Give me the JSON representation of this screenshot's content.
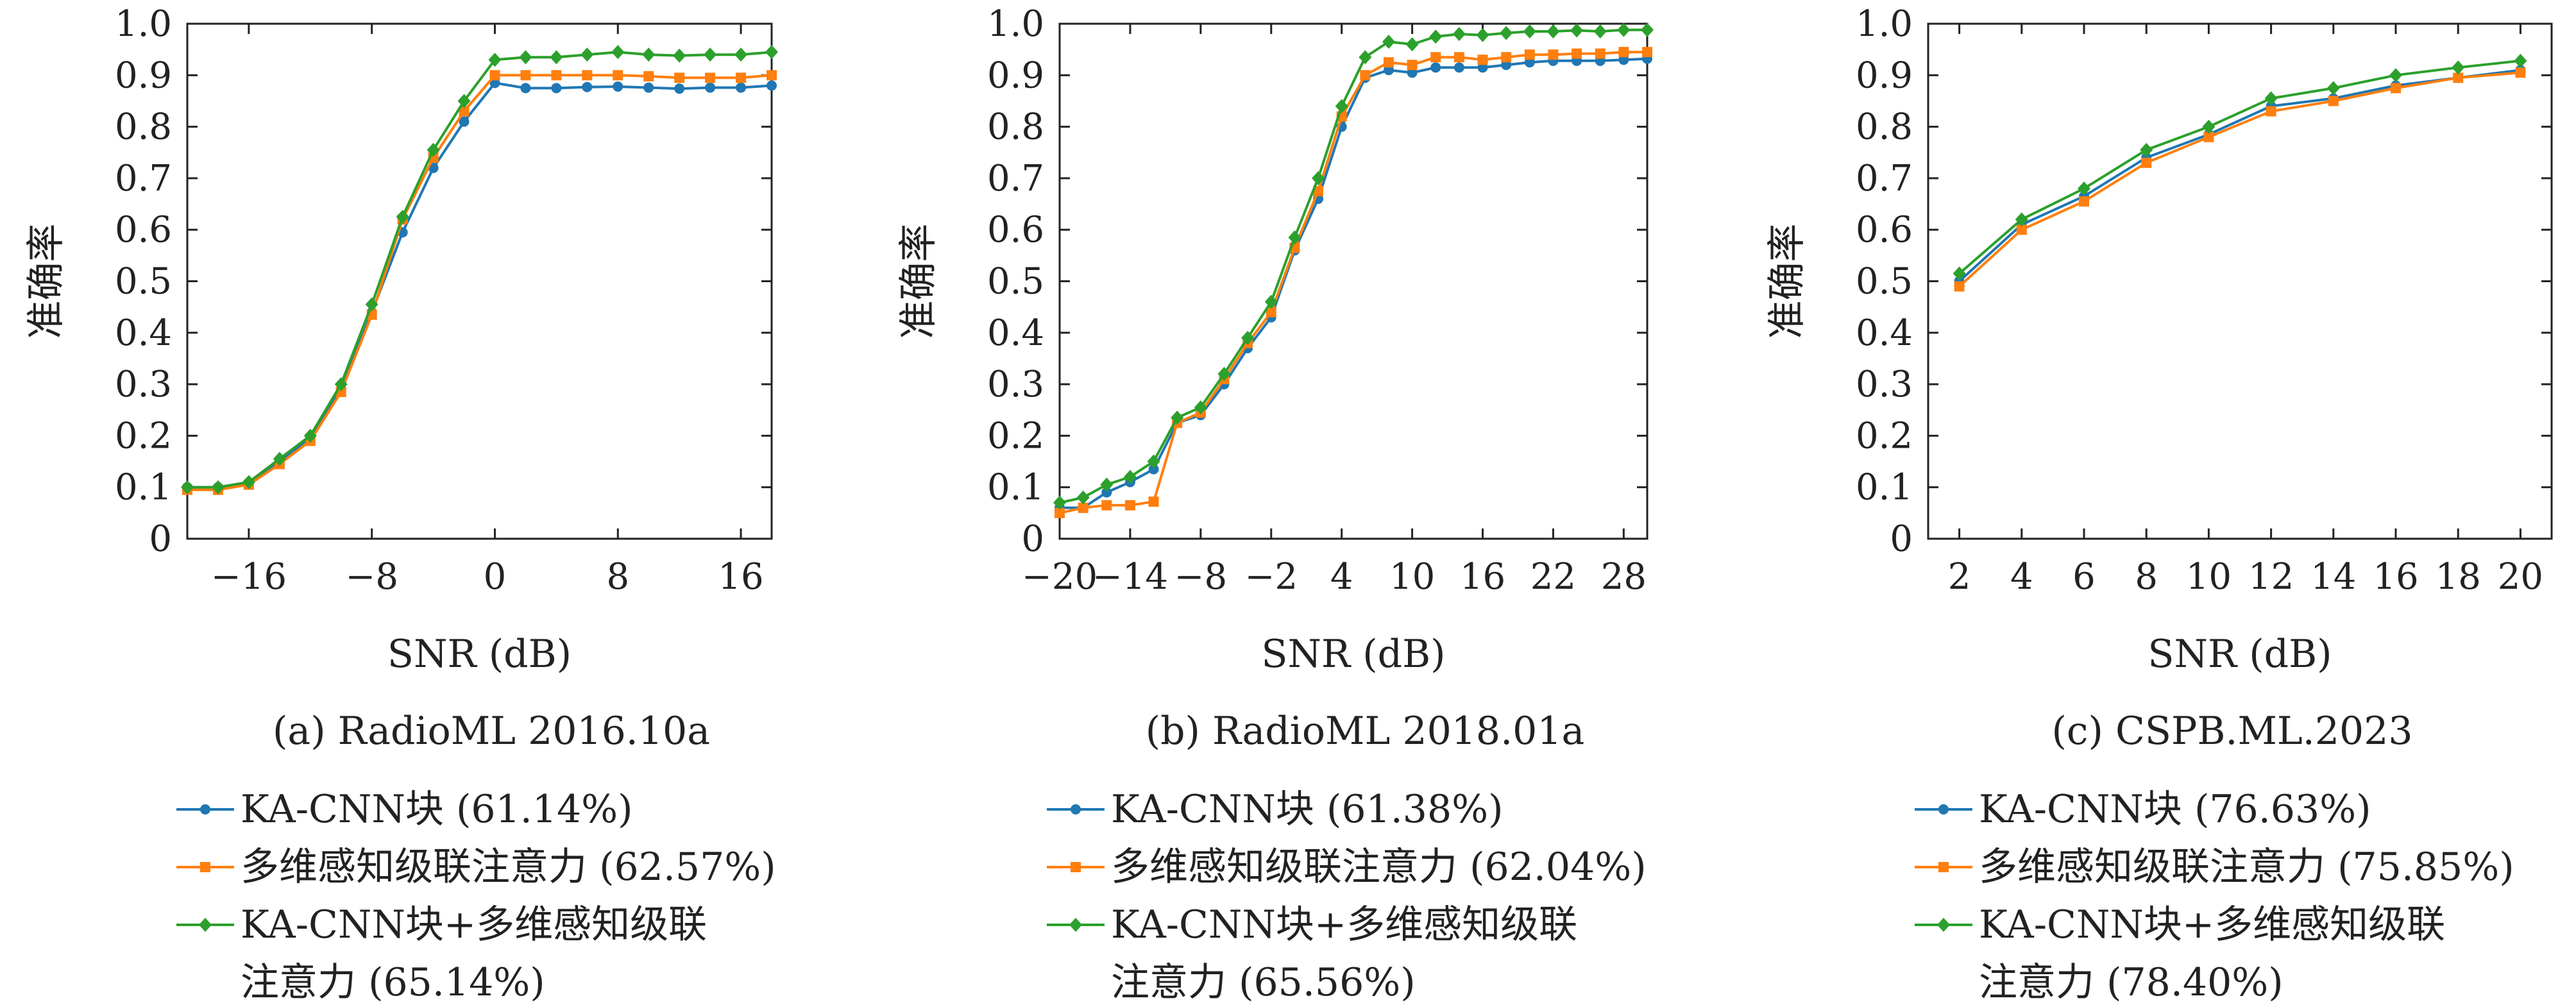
{
  "colors": {
    "blue": "#1f77b4",
    "orange": "#ff7f0e",
    "green": "#2ca02c",
    "axis": "#222222"
  },
  "chart_data": [
    {
      "type": "line",
      "caption": "(a) RadioML 2016.10a",
      "xlabel": "SNR (dB)",
      "ylabel": "准确率",
      "xlim": [
        -20,
        18
      ],
      "ylim": [
        0,
        1.0
      ],
      "xticks": [
        -16,
        -8,
        0,
        8,
        16
      ],
      "xtick_labels": [
        "−16",
        "−8",
        "0",
        "8",
        "16"
      ],
      "yticks": [
        0,
        0.1,
        0.2,
        0.3,
        0.4,
        0.5,
        0.6,
        0.7,
        0.8,
        0.9,
        1.0
      ],
      "ytick_labels": [
        "0",
        "0.1",
        "0.2",
        "0.3",
        "0.4",
        "0.5",
        "0.6",
        "0.7",
        "0.8",
        "0.9",
        "1.0"
      ],
      "grid": false,
      "legend_position": "below",
      "x": [
        -20,
        -18,
        -16,
        -14,
        -12,
        -10,
        -8,
        -6,
        -4,
        -2,
        0,
        2,
        4,
        6,
        8,
        10,
        12,
        14,
        16,
        18
      ],
      "series": [
        {
          "name": "KA-CNN块 (61.14%)",
          "legend_lines": [
            "KA-CNN块 (61.14%)"
          ],
          "color": "#1f77b4",
          "marker": "circle",
          "values": [
            0.1,
            0.1,
            0.105,
            0.15,
            0.195,
            0.29,
            0.44,
            0.595,
            0.72,
            0.81,
            0.885,
            0.875,
            0.875,
            0.877,
            0.878,
            0.876,
            0.874,
            0.876,
            0.876,
            0.88
          ]
        },
        {
          "name": "多维感知级联注意力 (62.57%)",
          "legend_lines": [
            "多维感知级联注意力 (62.57%)"
          ],
          "color": "#ff7f0e",
          "marker": "square",
          "values": [
            0.095,
            0.095,
            0.105,
            0.145,
            0.19,
            0.285,
            0.435,
            0.62,
            0.74,
            0.83,
            0.9,
            0.9,
            0.9,
            0.9,
            0.9,
            0.898,
            0.895,
            0.895,
            0.895,
            0.9
          ]
        },
        {
          "name": "KA-CNN块+多维感知级联注意力 (65.14%)",
          "legend_lines": [
            "KA-CNN块+多维感知级联",
            "注意力 (65.14%)"
          ],
          "color": "#2ca02c",
          "marker": "diamond",
          "values": [
            0.1,
            0.1,
            0.11,
            0.155,
            0.2,
            0.3,
            0.455,
            0.625,
            0.755,
            0.85,
            0.93,
            0.935,
            0.935,
            0.94,
            0.945,
            0.94,
            0.938,
            0.94,
            0.94,
            0.945
          ]
        }
      ]
    },
    {
      "type": "line",
      "caption": "(b) RadioML 2018.01a",
      "xlabel": "SNR (dB)",
      "ylabel": "准确率",
      "xlim": [
        -20,
        30
      ],
      "ylim": [
        0,
        1.0
      ],
      "xticks": [
        -20,
        -14,
        -8,
        -2,
        4,
        10,
        16,
        22,
        28
      ],
      "xtick_labels": [
        "−20",
        "−14",
        "−8",
        "−2",
        "4",
        "10",
        "16",
        "22",
        "28"
      ],
      "yticks": [
        0,
        0.1,
        0.2,
        0.3,
        0.4,
        0.5,
        0.6,
        0.7,
        0.8,
        0.9,
        1.0
      ],
      "ytick_labels": [
        "0",
        "0.1",
        "0.2",
        "0.3",
        "0.4",
        "0.5",
        "0.6",
        "0.7",
        "0.8",
        "0.9",
        "1.0"
      ],
      "grid": false,
      "legend_position": "below",
      "x": [
        -20,
        -18,
        -16,
        -14,
        -12,
        -10,
        -8,
        -6,
        -4,
        -2,
        0,
        2,
        4,
        6,
        8,
        10,
        12,
        14,
        16,
        18,
        20,
        22,
        24,
        26,
        28,
        30
      ],
      "series": [
        {
          "name": "KA-CNN块 (61.38%)",
          "legend_lines": [
            "KA-CNN块 (61.38%)"
          ],
          "color": "#1f77b4",
          "marker": "circle",
          "values": [
            0.06,
            0.06,
            0.09,
            0.11,
            0.135,
            0.225,
            0.24,
            0.3,
            0.37,
            0.43,
            0.56,
            0.66,
            0.8,
            0.895,
            0.91,
            0.905,
            0.915,
            0.915,
            0.915,
            0.92,
            0.925,
            0.928,
            0.928,
            0.928,
            0.93,
            0.932
          ]
        },
        {
          "name": "多维感知级联注意力 (62.04%)",
          "legend_lines": [
            "多维感知级联注意力 (62.04%)"
          ],
          "color": "#ff7f0e",
          "marker": "square",
          "values": [
            0.05,
            0.06,
            0.065,
            0.065,
            0.072,
            0.225,
            0.245,
            0.31,
            0.38,
            0.44,
            0.565,
            0.675,
            0.82,
            0.9,
            0.925,
            0.92,
            0.935,
            0.935,
            0.93,
            0.935,
            0.94,
            0.94,
            0.942,
            0.942,
            0.945,
            0.945
          ]
        },
        {
          "name": "KA-CNN块+多维感知级联注意力 (65.56%)",
          "legend_lines": [
            "KA-CNN块+多维感知级联",
            "注意力 (65.56%)"
          ],
          "color": "#2ca02c",
          "marker": "diamond",
          "values": [
            0.07,
            0.08,
            0.105,
            0.12,
            0.15,
            0.235,
            0.255,
            0.32,
            0.39,
            0.46,
            0.585,
            0.7,
            0.84,
            0.935,
            0.965,
            0.96,
            0.975,
            0.98,
            0.978,
            0.982,
            0.985,
            0.985,
            0.987,
            0.985,
            0.988,
            0.988
          ]
        }
      ]
    },
    {
      "type": "line",
      "caption": "(c) CSPB.ML.2023",
      "xlabel": "SNR (dB)",
      "ylabel": "准确率",
      "xlim": [
        1,
        21
      ],
      "ylim": [
        0,
        1.0
      ],
      "xticks": [
        2,
        4,
        6,
        8,
        10,
        12,
        14,
        16,
        18,
        20
      ],
      "xtick_labels": [
        "2",
        "4",
        "6",
        "8",
        "10",
        "12",
        "14",
        "16",
        "18",
        "20"
      ],
      "yticks": [
        0,
        0.1,
        0.2,
        0.3,
        0.4,
        0.5,
        0.6,
        0.7,
        0.8,
        0.9,
        1.0
      ],
      "ytick_labels": [
        "0",
        "0.1",
        "0.2",
        "0.3",
        "0.4",
        "0.5",
        "0.6",
        "0.7",
        "0.8",
        "0.9",
        "1.0"
      ],
      "grid": false,
      "legend_position": "below",
      "x": [
        2,
        4,
        6,
        8,
        10,
        12,
        14,
        16,
        18,
        20
      ],
      "series": [
        {
          "name": "KA-CNN块 (76.63%)",
          "legend_lines": [
            "KA-CNN块 (76.63%)"
          ],
          "color": "#1f77b4",
          "marker": "circle",
          "values": [
            0.5,
            0.61,
            0.665,
            0.74,
            0.785,
            0.84,
            0.855,
            0.88,
            0.895,
            0.91
          ]
        },
        {
          "name": "多维感知级联注意力 (75.85%)",
          "legend_lines": [
            "多维感知级联注意力 (75.85%)"
          ],
          "color": "#ff7f0e",
          "marker": "square",
          "values": [
            0.49,
            0.6,
            0.655,
            0.73,
            0.78,
            0.83,
            0.85,
            0.875,
            0.895,
            0.905
          ]
        },
        {
          "name": "KA-CNN块+多维感知级联注意力 (78.40%)",
          "legend_lines": [
            "KA-CNN块+多维感知级联",
            "注意力 (78.40%)"
          ],
          "color": "#2ca02c",
          "marker": "diamond",
          "values": [
            0.515,
            0.62,
            0.68,
            0.755,
            0.8,
            0.855,
            0.875,
            0.9,
            0.915,
            0.928
          ]
        }
      ]
    }
  ]
}
